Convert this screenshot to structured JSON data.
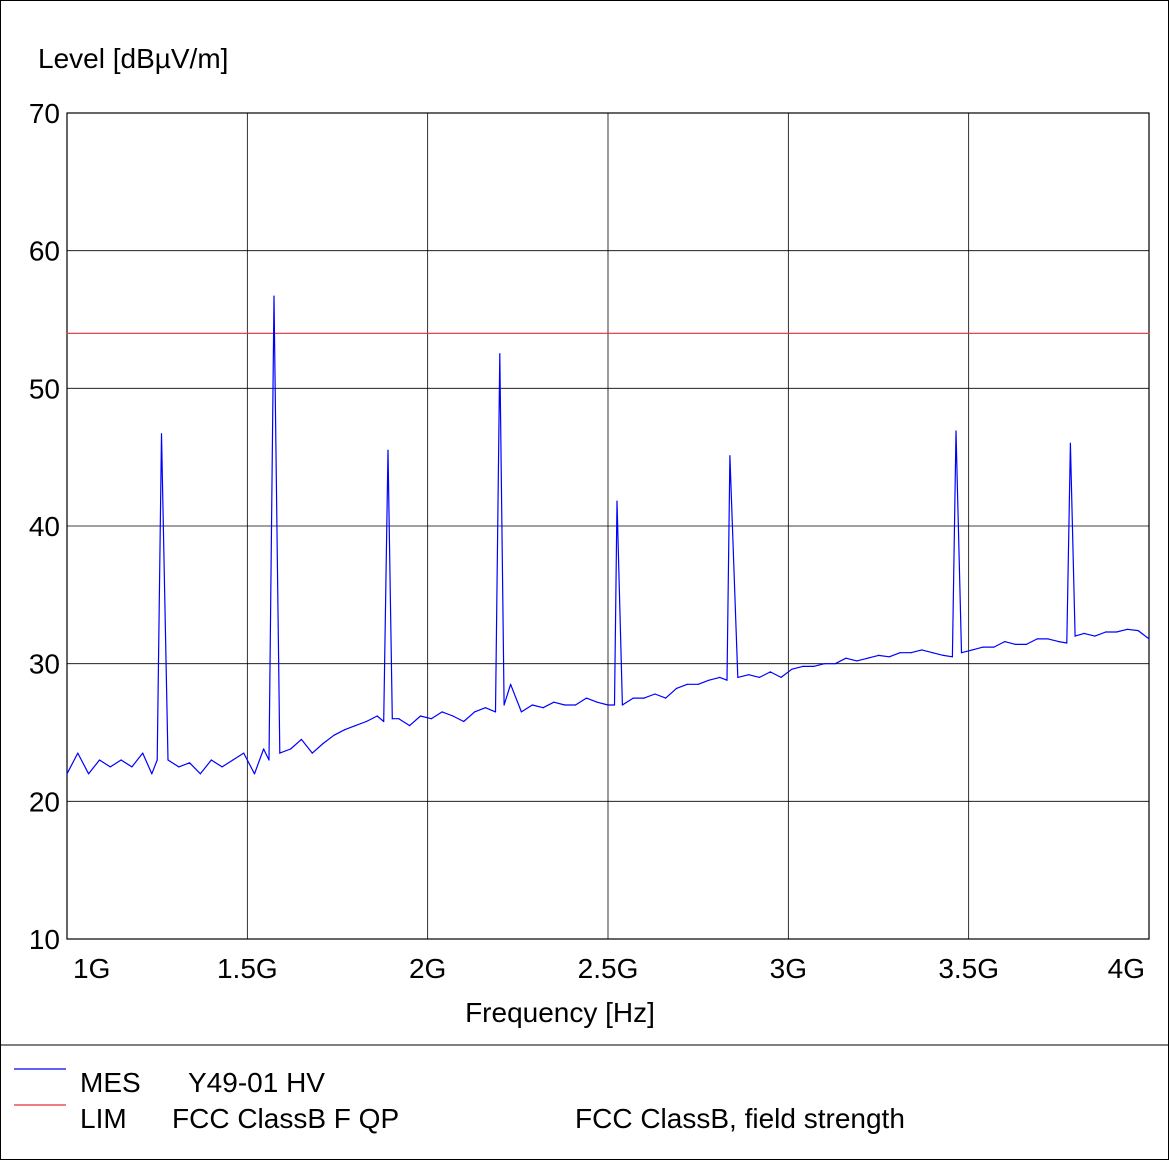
{
  "chart_data": {
    "type": "line",
    "ylabel": "Level [dBµV/m]",
    "xlabel": "Frequency [Hz]",
    "xlim": [
      1000000000,
      4000000000
    ],
    "ylim": [
      10,
      70
    ],
    "grid": true,
    "x_ticks": [
      {
        "value": 1000000000,
        "label": "1G"
      },
      {
        "value": 1500000000,
        "label": "1.5G"
      },
      {
        "value": 2000000000,
        "label": "2G"
      },
      {
        "value": 2500000000,
        "label": "2.5G"
      },
      {
        "value": 3000000000,
        "label": "3G"
      },
      {
        "value": 3500000000,
        "label": "3.5G"
      },
      {
        "value": 4000000000,
        "label": "4G"
      }
    ],
    "y_ticks": [
      {
        "value": 10,
        "label": "10"
      },
      {
        "value": 20,
        "label": "20"
      },
      {
        "value": 30,
        "label": "30"
      },
      {
        "value": 40,
        "label": "40"
      },
      {
        "value": 50,
        "label": "50"
      },
      {
        "value": 60,
        "label": "60"
      },
      {
        "value": 70,
        "label": "70"
      }
    ],
    "series": [
      {
        "name": "MES",
        "label": "Y49-01 HV",
        "color": "#0000ff",
        "x": [
          1000000000,
          1030000000,
          1060000000,
          1090000000,
          1120000000,
          1150000000,
          1180000000,
          1210000000,
          1235000000,
          1250000000,
          1262000000,
          1280000000,
          1310000000,
          1340000000,
          1370000000,
          1400000000,
          1430000000,
          1460000000,
          1490000000,
          1520000000,
          1545000000,
          1560000000,
          1574000000,
          1590000000,
          1620000000,
          1650000000,
          1680000000,
          1710000000,
          1740000000,
          1770000000,
          1800000000,
          1830000000,
          1860000000,
          1878000000,
          1890000000,
          1902000000,
          1920000000,
          1950000000,
          1980000000,
          2010000000,
          2040000000,
          2070000000,
          2100000000,
          2130000000,
          2160000000,
          2188000000,
          2200000000,
          2212000000,
          2230000000,
          2260000000,
          2290000000,
          2320000000,
          2350000000,
          2380000000,
          2410000000,
          2440000000,
          2470000000,
          2500000000,
          2518000000,
          2525000000,
          2540000000,
          2570000000,
          2600000000,
          2630000000,
          2660000000,
          2690000000,
          2720000000,
          2750000000,
          2780000000,
          2810000000,
          2830000000,
          2838000000,
          2860000000,
          2890000000,
          2920000000,
          2950000000,
          2980000000,
          3010000000,
          3040000000,
          3070000000,
          3100000000,
          3130000000,
          3160000000,
          3190000000,
          3220000000,
          3250000000,
          3280000000,
          3310000000,
          3340000000,
          3370000000,
          3400000000,
          3430000000,
          3455000000,
          3465000000,
          3480000000,
          3510000000,
          3540000000,
          3570000000,
          3600000000,
          3630000000,
          3660000000,
          3690000000,
          3720000000,
          3750000000,
          3772000000,
          3782000000,
          3795000000,
          3820000000,
          3850000000,
          3880000000,
          3910000000,
          3940000000,
          3970000000,
          4000000000
        ],
        "y": [
          22.0,
          23.5,
          22.0,
          23.0,
          22.5,
          23.0,
          22.5,
          23.5,
          22.0,
          23.0,
          46.7,
          23.0,
          22.5,
          22.8,
          22.0,
          23.0,
          22.5,
          23.0,
          23.5,
          22.0,
          23.8,
          23.0,
          56.7,
          23.5,
          23.8,
          24.5,
          23.5,
          24.2,
          24.8,
          25.2,
          25.5,
          25.8,
          26.2,
          25.8,
          45.5,
          26.0,
          26.0,
          25.5,
          26.2,
          26.0,
          26.5,
          26.2,
          25.8,
          26.5,
          26.8,
          26.5,
          52.5,
          27.0,
          28.5,
          26.5,
          27.0,
          26.8,
          27.2,
          27.0,
          27.0,
          27.5,
          27.2,
          27.0,
          27.0,
          41.8,
          27.0,
          27.5,
          27.5,
          27.8,
          27.5,
          28.2,
          28.5,
          28.5,
          28.8,
          29.0,
          28.8,
          45.1,
          29.0,
          29.2,
          29.0,
          29.4,
          29.0,
          29.6,
          29.8,
          29.8,
          30.0,
          30.0,
          30.4,
          30.2,
          30.4,
          30.6,
          30.5,
          30.8,
          30.8,
          31.0,
          30.8,
          30.6,
          30.5,
          46.9,
          30.8,
          31.0,
          31.2,
          31.2,
          31.6,
          31.4,
          31.4,
          31.8,
          31.8,
          31.6,
          31.5,
          46.0,
          32.0,
          32.2,
          32.0,
          32.3,
          32.3,
          32.5,
          32.4,
          31.8
        ]
      },
      {
        "name": "LIM",
        "label": "FCC ClassB F QP",
        "description": "FCC ClassB, field strength",
        "color": "#e03030",
        "x": [
          1000000000,
          4000000000
        ],
        "y": [
          54,
          54
        ]
      }
    ],
    "legend_placement": "bottom-left"
  }
}
